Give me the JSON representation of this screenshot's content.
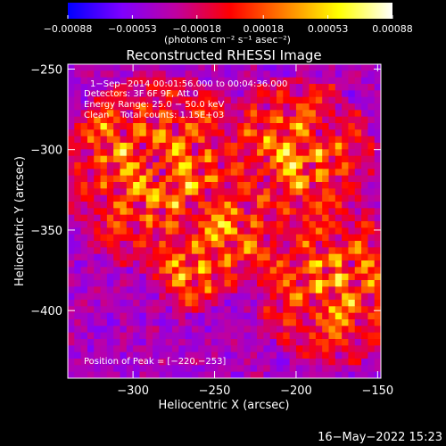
{
  "chart_data": {
    "type": "heatmap",
    "title": "Reconstructed RHESSI Image",
    "xlabel": "Heliocentric X (arcsec)",
    "ylabel": "Heliocentric Y (arcsec)",
    "xlim": [
      -340,
      -148
    ],
    "ylim": [
      -442,
      -247
    ],
    "x_ticks": [
      -300,
      -250,
      -200,
      -150
    ],
    "x_tick_labels": [
      "−300",
      "−250",
      "−200",
      "−150"
    ],
    "y_ticks": [
      -250,
      -300,
      -350,
      -400
    ],
    "y_tick_labels": [
      "−250",
      "−300",
      "−350",
      "−400"
    ],
    "colorbar": {
      "range": [
        -0.00088,
        0.00088
      ],
      "ticks": [
        -0.00088,
        -0.00053,
        -0.00018,
        0.00018,
        0.00053,
        0.00088
      ],
      "tick_labels": [
        "−0.00088",
        "−0.00053",
        "−0.00018",
        "0.00018",
        "0.00053",
        "0.00088"
      ],
      "unit_label": "(photons cm⁻² s⁻¹ asec⁻²)",
      "stops": [
        "#0000ff",
        "#7f00ff",
        "#c000a0",
        "#ff0000",
        "#ff7f00",
        "#ffff00",
        "#ffffff"
      ]
    },
    "annotations": [
      "1−Sep−2014 00:01:56.000 to 00:04:36.000",
      "Detectors: 3F 6F 9F, Att 0",
      "Energy Range: 25.0 − 50.0 keV",
      "Clean    Total counts: 1.15E+03"
    ],
    "peak_label": "Position of Peak = [−220,−253]",
    "peak": [
      -220,
      -253
    ]
  },
  "footer": {
    "timestamp": "16−May−2022 15:23"
  }
}
